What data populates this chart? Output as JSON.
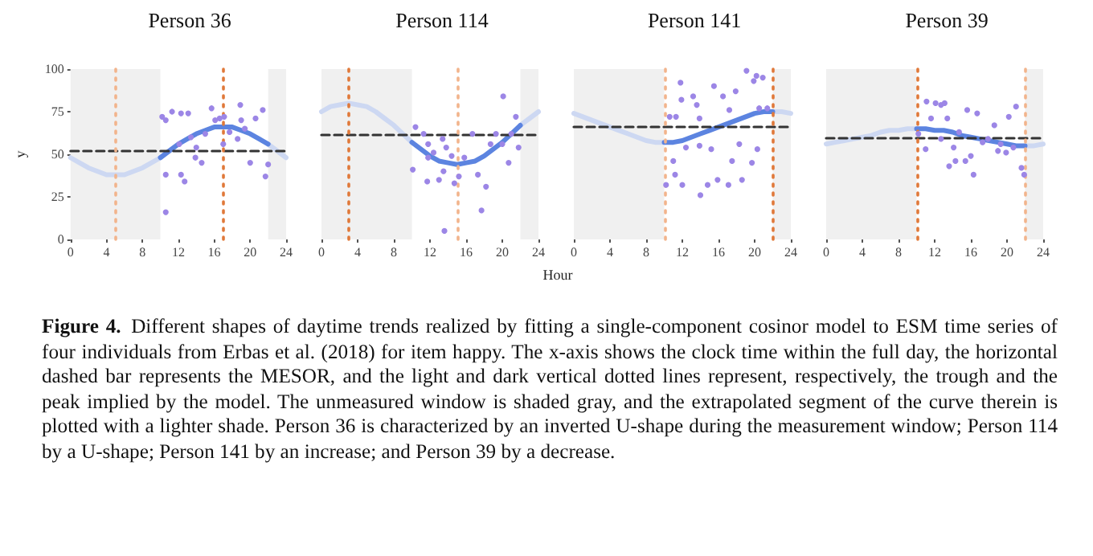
{
  "chart_data": [
    {
      "type": "scatter",
      "title": "Person 36",
      "ylabel": "y",
      "xlim": [
        0,
        24
      ],
      "xticks": [
        0,
        4,
        8,
        12,
        16,
        20,
        24
      ],
      "ylim": [
        0,
        100
      ],
      "yticks": [
        0,
        25,
        50,
        75,
        100
      ],
      "grid": false,
      "series": [
        {
          "type": "line",
          "color": "#cdd8f2",
          "marker": "none",
          "x": [
            0,
            1,
            2,
            3,
            4,
            5,
            6,
            7,
            8,
            9,
            10
          ],
          "values": [
            48,
            45,
            42,
            40,
            38,
            38,
            38,
            40,
            42,
            45,
            48
          ]
        },
        {
          "type": "line",
          "color": "#cdd8f2",
          "marker": "none",
          "x": [
            22,
            23,
            24
          ],
          "values": [
            56,
            52,
            48
          ]
        },
        {
          "type": "line",
          "color": "#5c84e0",
          "marker": "none",
          "x": [
            10,
            11,
            12,
            13,
            14,
            15,
            16,
            17,
            18,
            19,
            20,
            21,
            22
          ],
          "values": [
            48,
            52,
            56,
            59,
            62,
            64,
            66,
            66,
            66,
            64,
            62,
            59,
            56
          ]
        },
        {
          "type": "scatter",
          "color": "#9c86e6",
          "marker": "circle",
          "x": [
            10.2,
            10.6,
            11.3,
            12.3,
            13.1,
            10.6,
            10.6,
            12.1,
            12.3,
            12.7,
            14,
            13.9,
            15,
            15.7,
            16.1,
            16.6,
            17.1,
            17,
            17.7,
            18.9,
            19,
            19.4,
            20,
            20.6,
            21.4,
            21.7,
            22,
            18.6,
            14.6,
            13.4
          ],
          "values": [
            72,
            70,
            75,
            74,
            74,
            16,
            38,
            56,
            38,
            34,
            54,
            48,
            62,
            77,
            70,
            71,
            72,
            56,
            63,
            79,
            70,
            65,
            45,
            71,
            76,
            37,
            44,
            59,
            45,
            60
          ]
        }
      ],
      "ref_lines": [
        {
          "axis": "y",
          "value": 52,
          "color": "#333333",
          "line_style": "dashed"
        },
        {
          "axis": "x",
          "value": 5,
          "color": "#f2b48c",
          "line_style": "dotted"
        },
        {
          "axis": "x",
          "value": 17,
          "color": "#e0793a",
          "line_style": "dotted"
        }
      ],
      "bands": [
        {
          "axis": "x",
          "from": 0,
          "to": 10,
          "color": "#f0f0f0"
        },
        {
          "axis": "x",
          "from": 22,
          "to": 24,
          "color": "#f0f0f0"
        }
      ]
    },
    {
      "type": "scatter",
      "title": "Person 114",
      "xlabel": "Hour",
      "tick_labels": "x",
      "xlim": [
        0,
        24
      ],
      "xticks": [
        0,
        4,
        8,
        12,
        16,
        20,
        24
      ],
      "ylim": [
        0,
        100
      ],
      "grid": false,
      "series": [
        {
          "type": "line",
          "color": "#cdd8f2",
          "marker": "none",
          "x": [
            0,
            1,
            2,
            3,
            4,
            5,
            6,
            7,
            8,
            9,
            10
          ],
          "values": [
            75,
            78,
            79,
            80,
            79,
            78,
            75,
            71,
            67,
            62,
            57
          ]
        },
        {
          "type": "line",
          "color": "#cdd8f2",
          "marker": "none",
          "x": [
            22,
            23,
            24
          ],
          "values": [
            67,
            71,
            75
          ]
        },
        {
          "type": "line",
          "color": "#5c84e0",
          "marker": "none",
          "x": [
            10,
            11,
            12,
            13,
            14,
            15,
            16,
            17,
            18,
            19,
            20,
            21,
            22
          ],
          "values": [
            57,
            53,
            49,
            46,
            45,
            44,
            45,
            46,
            49,
            53,
            57,
            62,
            67
          ]
        },
        {
          "type": "scatter",
          "color": "#9c86e6",
          "marker": "circle",
          "x": [
            10.4,
            11.3,
            10.1,
            11.7,
            11.8,
            12.4,
            13,
            13.4,
            13.8,
            14.4,
            13.6,
            14.7,
            15.2,
            15.8,
            16.7,
            17.3,
            17.7,
            18.2,
            18.7,
            19.3,
            20.1,
            20,
            20.7,
            21,
            21.5,
            21.8,
            13.5,
            11.8
          ],
          "values": [
            66,
            62,
            41,
            34,
            56,
            51,
            35,
            59,
            54,
            49,
            5,
            33,
            37,
            48,
            62,
            38,
            17,
            31,
            56,
            62,
            84,
            56,
            45,
            62,
            72,
            54,
            40,
            48
          ]
        }
      ],
      "ref_lines": [
        {
          "axis": "y",
          "value": 62,
          "color": "#333333",
          "line_style": "dashed"
        },
        {
          "axis": "x",
          "value": 3,
          "color": "#e0793a",
          "line_style": "dotted"
        },
        {
          "axis": "x",
          "value": 15,
          "color": "#f2b48c",
          "line_style": "dotted"
        }
      ],
      "bands": [
        {
          "axis": "x",
          "from": 0,
          "to": 10,
          "color": "#f0f0f0"
        },
        {
          "axis": "x",
          "from": 22,
          "to": 24,
          "color": "#f0f0f0"
        }
      ]
    },
    {
      "type": "scatter",
      "title": "Person 141",
      "tick_labels": "x",
      "xlim": [
        0,
        24
      ],
      "xticks": [
        0,
        4,
        8,
        12,
        16,
        20,
        24
      ],
      "ylim": [
        0,
        100
      ],
      "grid": false,
      "series": [
        {
          "type": "line",
          "color": "#cdd8f2",
          "marker": "none",
          "x": [
            0,
            1,
            2,
            3,
            4,
            5,
            6,
            7,
            8,
            9,
            10
          ],
          "values": [
            74,
            72,
            70,
            68,
            66,
            64,
            62,
            60,
            58,
            57,
            57
          ]
        },
        {
          "type": "line",
          "color": "#cdd8f2",
          "marker": "none",
          "x": [
            22,
            23,
            24
          ],
          "values": [
            75,
            75,
            74
          ]
        },
        {
          "type": "line",
          "color": "#5c84e0",
          "marker": "none",
          "x": [
            10,
            11,
            12,
            13,
            14,
            15,
            16,
            17,
            18,
            19,
            20,
            21,
            22
          ],
          "values": [
            57,
            57,
            58,
            60,
            62,
            64,
            66,
            68,
            70,
            72,
            74,
            75,
            75
          ]
        },
        {
          "type": "scatter",
          "color": "#9c86e6",
          "marker": "circle",
          "x": [
            10.6,
            11.3,
            11.9,
            11.8,
            11,
            11.2,
            12,
            12.4,
            13.2,
            13.6,
            13.9,
            13.9,
            14,
            14.8,
            15.2,
            15.5,
            15.9,
            16.5,
            17.2,
            17.1,
            17.5,
            17.9,
            18.3,
            18.6,
            19.1,
            19.7,
            19.9,
            20.2,
            20.3,
            20.5,
            20.9,
            21.4,
            10.2
          ],
          "values": [
            72,
            72,
            82,
            92,
            46,
            38,
            32,
            54,
            84,
            79,
            71,
            55,
            26,
            32,
            53,
            90,
            35,
            84,
            76,
            32,
            46,
            87,
            56,
            35,
            99,
            45,
            93,
            96,
            53,
            77,
            95,
            77,
            32
          ]
        }
      ],
      "ref_lines": [
        {
          "axis": "y",
          "value": 66,
          "color": "#333333",
          "line_style": "dashed"
        },
        {
          "axis": "x",
          "value": 10,
          "color": "#f2b48c",
          "line_style": "dotted"
        },
        {
          "axis": "x",
          "value": 22,
          "color": "#e0793a",
          "line_style": "dotted"
        }
      ],
      "bands": [
        {
          "axis": "x",
          "from": 0,
          "to": 10,
          "color": "#f0f0f0"
        },
        {
          "axis": "x",
          "from": 22,
          "to": 24,
          "color": "#f0f0f0"
        }
      ]
    },
    {
      "type": "scatter",
      "title": "Person 39",
      "tick_labels": "x",
      "xlim": [
        0,
        24
      ],
      "xticks": [
        0,
        4,
        8,
        12,
        16,
        20,
        24
      ],
      "ylim": [
        0,
        100
      ],
      "grid": false,
      "series": [
        {
          "type": "line",
          "color": "#cdd8f2",
          "marker": "none",
          "x": [
            0,
            1,
            2,
            3,
            4,
            5,
            6,
            7,
            8,
            9,
            10
          ],
          "values": [
            56,
            57,
            58,
            59,
            60,
            61,
            63,
            64,
            64,
            65,
            65
          ]
        },
        {
          "type": "line",
          "color": "#cdd8f2",
          "marker": "none",
          "x": [
            22,
            23,
            24
          ],
          "values": [
            55,
            55,
            56
          ]
        },
        {
          "type": "line",
          "color": "#5c84e0",
          "marker": "none",
          "x": [
            10,
            11,
            12,
            13,
            14,
            15,
            16,
            17,
            18,
            19,
            20,
            21,
            22
          ],
          "values": [
            65,
            65,
            64,
            64,
            63,
            61,
            60,
            59,
            58,
            57,
            56,
            55,
            55
          ]
        },
        {
          "type": "scatter",
          "color": "#9c86e6",
          "marker": "circle",
          "x": [
            10.2,
            11.1,
            11.6,
            12.1,
            12.7,
            13.1,
            12.7,
            13.4,
            13.6,
            14.1,
            14.3,
            14.7,
            15.6,
            15.4,
            16,
            16.3,
            16.7,
            17.3,
            17.9,
            18.6,
            19,
            19.3,
            20.2,
            19.9,
            21,
            21.6,
            21.9,
            20.7,
            11
          ],
          "values": [
            62,
            81,
            71,
            80,
            79,
            80,
            59,
            71,
            43,
            54,
            46,
            63,
            76,
            46,
            49,
            38,
            74,
            57,
            59,
            67,
            52,
            56,
            72,
            51,
            78,
            42,
            38,
            54,
            53
          ]
        }
      ],
      "ref_lines": [
        {
          "axis": "y",
          "value": 60,
          "color": "#333333",
          "line_style": "dashed"
        },
        {
          "axis": "x",
          "value": 10,
          "color": "#e0793a",
          "line_style": "dotted"
        },
        {
          "axis": "x",
          "value": 22,
          "color": "#f2b48c",
          "line_style": "dotted"
        }
      ],
      "bands": [
        {
          "axis": "x",
          "from": 0,
          "to": 10,
          "color": "#f0f0f0"
        },
        {
          "axis": "x",
          "from": 22,
          "to": 24,
          "color": "#f0f0f0"
        }
      ]
    },
    {
      "type": "other",
      "annotations": [
        "Figure 4.",
        "Different shapes of daytime trends realized by fitting a single-component cosinor model to ESM time series of four individuals from Erbas et al. (2018) for item happy. The x-axis shows the clock time within the full day, the horizontal dashed bar represents the MESOR, and the light and dark vertical dotted lines represent, respectively, the trough and the peak implied by the model. The unmeasured window is shaded gray, and the extrapolated segment of the curve therein is plotted with a lighter shade. Person 36 is characterized by an inverted U-shape during the measurement window; Person 114 by a U-shape; Person 141 by an increase; and Person 39 by a decrease."
      ]
    }
  ]
}
